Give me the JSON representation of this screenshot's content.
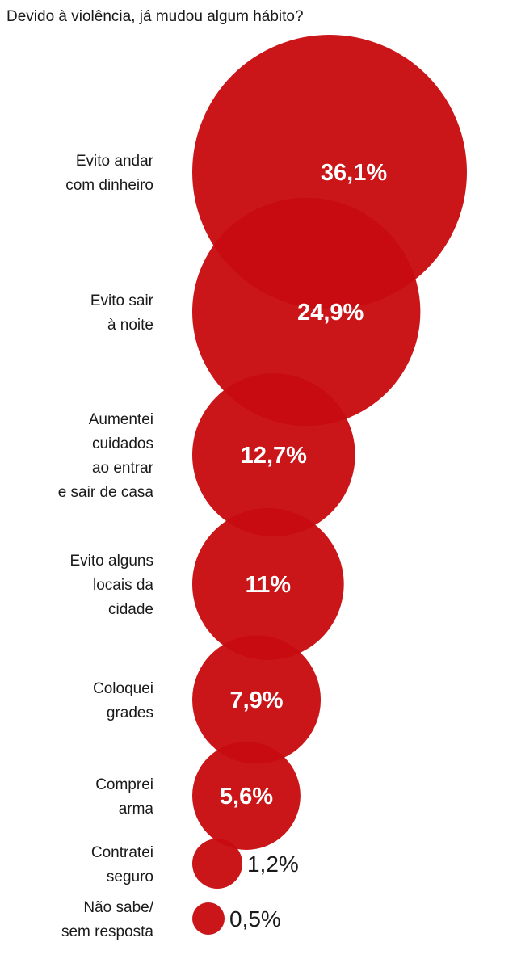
{
  "chart_data": {
    "type": "bubble",
    "title": "Devido à violência, já mudou algum hábito?",
    "unit": "%",
    "categories": [
      [
        "Evito andar",
        "com dinheiro"
      ],
      [
        "Evito sair",
        "à noite"
      ],
      [
        "Aumentei",
        "cuidados",
        "ao entrar",
        "e sair de casa"
      ],
      [
        "Evito alguns",
        "locais da",
        "cidade"
      ],
      [
        "Coloquei",
        "grades"
      ],
      [
        "Comprei",
        "arma"
      ],
      [
        "Contratei",
        "seguro"
      ],
      [
        "Não sabe/",
        "sem resposta"
      ]
    ],
    "values": [
      36.1,
      24.9,
      12.7,
      11,
      7.9,
      5.6,
      1.2,
      0.5
    ],
    "value_labels": [
      "36,1%",
      "24,9%",
      "12,7%",
      "11%",
      "7,9%",
      "5,6%",
      "1,2%",
      "0,5%"
    ],
    "colors": {
      "bubble": "#c80b10",
      "label_text": "#1a1a1a",
      "value_text_inside": "#ffffff"
    },
    "grid": false,
    "legend": "none"
  }
}
